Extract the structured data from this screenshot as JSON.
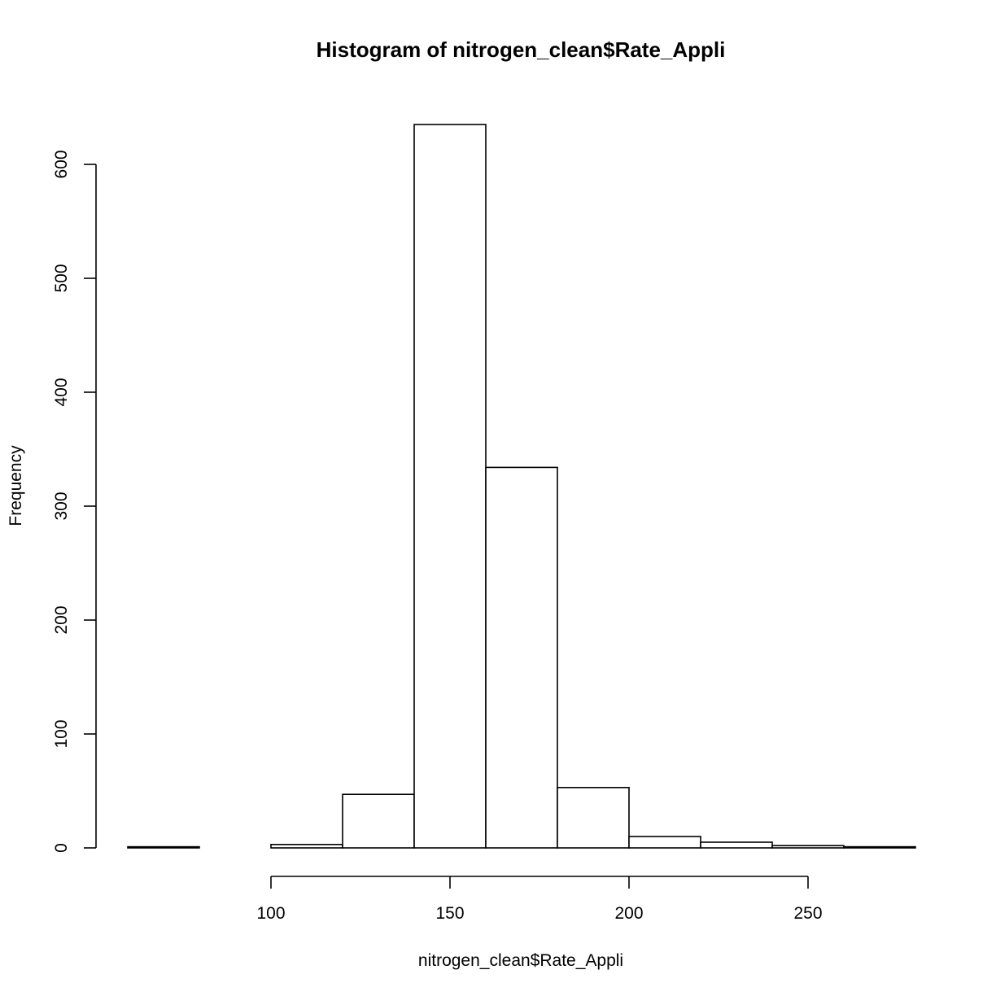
{
  "chart_data": {
    "type": "bar",
    "subtype": "histogram",
    "title": "Histogram of nitrogen_clean$Rate_Appli",
    "xlabel": "nitrogen_clean$Rate_Appli",
    "ylabel": "Frequency",
    "bins": [
      {
        "start": 60,
        "end": 80,
        "count": 1
      },
      {
        "start": 80,
        "end": 100,
        "count": 0
      },
      {
        "start": 100,
        "end": 120,
        "count": 3
      },
      {
        "start": 120,
        "end": 140,
        "count": 47
      },
      {
        "start": 140,
        "end": 160,
        "count": 635
      },
      {
        "start": 160,
        "end": 180,
        "count": 334
      },
      {
        "start": 180,
        "end": 200,
        "count": 53
      },
      {
        "start": 200,
        "end": 220,
        "count": 10
      },
      {
        "start": 220,
        "end": 240,
        "count": 5
      },
      {
        "start": 240,
        "end": 260,
        "count": 2
      },
      {
        "start": 260,
        "end": 280,
        "count": 1
      }
    ],
    "xlim": [
      60,
      280
    ],
    "ylim": [
      0,
      635
    ],
    "x_ticks": [
      100,
      150,
      200,
      250
    ],
    "x_tick_labels": [
      "100",
      "150",
      "200",
      "250"
    ],
    "y_ticks": [
      0,
      100,
      200,
      300,
      400,
      500,
      600
    ],
    "y_tick_labels": [
      "0",
      "100",
      "200",
      "300",
      "400",
      "500",
      "600"
    ],
    "grid": false,
    "legend": "none",
    "bar_fill": "#ffffff",
    "bar_stroke": "#000000"
  }
}
